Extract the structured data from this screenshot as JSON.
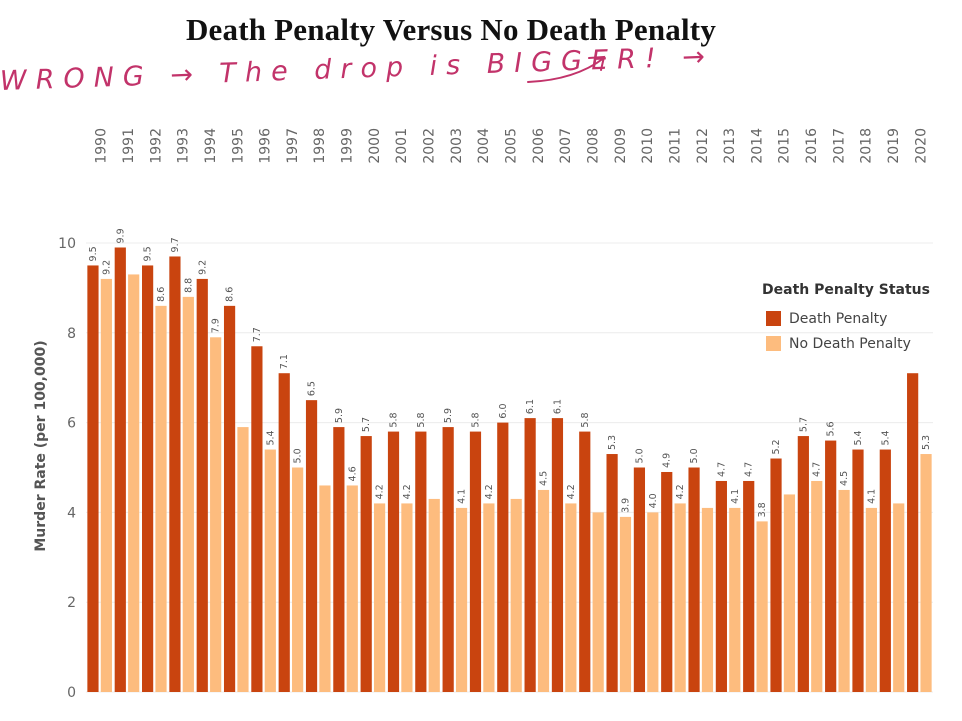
{
  "annotation": {
    "text": "WRONG → The drop is BIGGER! →",
    "color": "#c2336a"
  },
  "colors": {
    "death_penalty": "#c9440f",
    "no_death_penalty": "#fdbc7e",
    "grid": "#ececec",
    "axis_text": "#666666"
  },
  "chart_data": {
    "type": "bar",
    "title": "Death Penalty Versus No Death Penalty",
    "xlabel": "",
    "ylabel": "Murder Rate (per 100,000)",
    "ylim": [
      0,
      10.3
    ],
    "yticks": [
      0,
      2,
      4,
      6,
      8,
      10
    ],
    "grid": true,
    "legend_title": "Death Penalty Status",
    "legend_placement": "right",
    "categories": [
      "1990",
      "1991",
      "1992",
      "1993",
      "1994",
      "1995",
      "1996",
      "1997",
      "1998",
      "1999",
      "2000",
      "2001",
      "2002",
      "2003",
      "2004",
      "2005",
      "2006",
      "2007",
      "2008",
      "2009",
      "2010",
      "2011",
      "2012",
      "2013",
      "2014",
      "2015",
      "2016",
      "2017",
      "2018",
      "2019",
      "2020"
    ],
    "series": [
      {
        "name": "Death Penalty",
        "values": [
          9.5,
          9.9,
          9.5,
          9.7,
          9.2,
          8.6,
          7.7,
          7.1,
          6.5,
          5.9,
          5.7,
          5.8,
          5.8,
          5.9,
          5.8,
          6.0,
          6.1,
          6.1,
          5.8,
          5.3,
          5.0,
          4.9,
          5.0,
          4.7,
          4.7,
          5.2,
          5.7,
          5.6,
          5.4,
          5.4,
          7.1
        ],
        "labels": [
          "9.5",
          "9.9",
          "9.5",
          "9.7",
          "9.2",
          "8.6",
          "7.7",
          "7.1",
          "6.5",
          "5.9",
          "5.7",
          "5.8",
          "5.8",
          "5.9",
          "5.8",
          "6.0",
          "6.1",
          "6.1",
          "5.8",
          "5.3",
          "5.0",
          "4.9",
          "5.0",
          "4.7",
          "4.7",
          "5.2",
          "5.7",
          "5.6",
          "5.4",
          "5.4",
          ""
        ]
      },
      {
        "name": "No Death Penalty",
        "values": [
          9.2,
          9.3,
          8.6,
          8.8,
          7.9,
          5.9,
          5.4,
          5.0,
          4.6,
          4.6,
          4.2,
          4.2,
          4.3,
          4.1,
          4.2,
          4.3,
          4.5,
          4.2,
          4.0,
          3.9,
          4.0,
          4.2,
          4.1,
          4.1,
          3.8,
          4.4,
          4.7,
          4.5,
          4.1,
          4.2,
          5.3
        ],
        "labels": [
          "9.2",
          "",
          "8.6",
          "8.8",
          "7.9",
          "",
          "5.4",
          "5.0",
          "",
          "4.6",
          "4.2",
          "4.2",
          "",
          "4.1",
          "4.2",
          "",
          "4.5",
          "4.2",
          "",
          "3.9",
          "4.0",
          "4.2",
          "",
          "4.1",
          "3.8",
          "",
          "4.7",
          "4.5",
          "4.1",
          "",
          "5.3"
        ]
      }
    ]
  }
}
